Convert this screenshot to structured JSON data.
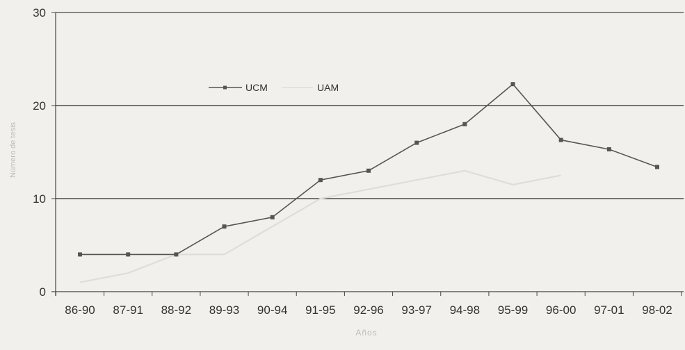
{
  "chart_data": {
    "type": "line",
    "title": "",
    "xlabel": "Años",
    "ylabel": "Número de tesis",
    "categories": [
      "86-90",
      "87-91",
      "88-92",
      "89-93",
      "90-94",
      "91-95",
      "92-96",
      "93-97",
      "94-98",
      "95-99",
      "96-00",
      "97-01",
      "98-02"
    ],
    "ylim": [
      0,
      30
    ],
    "yticks": [
      "0",
      "10",
      "20",
      "30"
    ],
    "grid": "horizontal",
    "legend_position": "top-left",
    "series": [
      {
        "name": "UCM",
        "values": [
          4,
          4,
          4,
          7,
          8,
          12,
          13,
          16,
          18,
          22.3,
          16.3,
          15.3,
          13.4
        ],
        "color": "#555555",
        "marker": "square"
      },
      {
        "name": "UAM",
        "values": [
          1,
          2,
          4,
          4,
          7,
          10,
          11,
          12,
          13,
          11.5,
          12.5,
          null,
          null
        ],
        "color": "#dddddd",
        "marker": "none"
      }
    ]
  },
  "colors": {
    "background": "#f1f0ec",
    "axis": "#444444",
    "grid": "#4a4a4a",
    "tick_label": "#333333",
    "axis_title": "#bdbdbd"
  }
}
